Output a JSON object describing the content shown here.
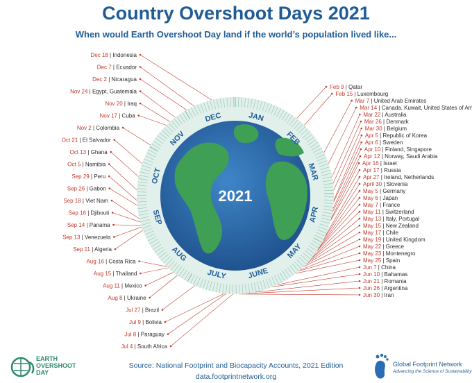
{
  "header": {
    "title": "Country Overshoot Days 2021",
    "subtitle": "When would Earth Overshoot Day land if the world’s population lived like..."
  },
  "center_year": "2021",
  "months": [
    "JAN",
    "FEB",
    "MAR",
    "APR",
    "MAY",
    "JUNE",
    "JULY",
    "AUG",
    "SEP",
    "OCT",
    "NOV",
    "DEC"
  ],
  "countries": [
    {
      "date": "Feb 9",
      "country": "Qatar"
    },
    {
      "date": "Feb 15",
      "country": "Luxembourg"
    },
    {
      "date": "Mar 7",
      "country": "United Arab Emirates"
    },
    {
      "date": "Mar 14",
      "country": "Canada, Kuwait, United States of America"
    },
    {
      "date": "Mar 22",
      "country": "Australia"
    },
    {
      "date": "Mar 26",
      "country": "Denmark"
    },
    {
      "date": "Mar 30",
      "country": "Belgium"
    },
    {
      "date": "Apr 5",
      "country": "Republic of Korea"
    },
    {
      "date": "Apr 6",
      "country": "Sweden"
    },
    {
      "date": "Apr 10",
      "country": "Finland, Singapore"
    },
    {
      "date": "Apr 12",
      "country": "Norway, Saudi Arabia"
    },
    {
      "date": "Apr 16",
      "country": "Israel"
    },
    {
      "date": "Apr 17",
      "country": "Russia"
    },
    {
      "date": "Apr 27",
      "country": "Ireland, Netherlands"
    },
    {
      "date": "April 30",
      "country": "Slovenia"
    },
    {
      "date": "May 5",
      "country": "Germany"
    },
    {
      "date": "May 6",
      "country": "Japan"
    },
    {
      "date": "May 7",
      "country": "France"
    },
    {
      "date": "May 11",
      "country": "Switzerland"
    },
    {
      "date": "May 13",
      "country": "Italy, Portugal"
    },
    {
      "date": "May 15",
      "country": "New Zealand"
    },
    {
      "date": "May 17",
      "country": "Chile"
    },
    {
      "date": "May 19",
      "country": "United Kingdom"
    },
    {
      "date": "May 22",
      "country": "Greece"
    },
    {
      "date": "May 23",
      "country": "Montenegro"
    },
    {
      "date": "May 25",
      "country": "Spain"
    },
    {
      "date": "Jun 7",
      "country": "China"
    },
    {
      "date": "Jun 10",
      "country": "Bahamas"
    },
    {
      "date": "Jun 21",
      "country": "Romania"
    },
    {
      "date": "Jun 26",
      "country": "Argentina"
    },
    {
      "date": "Jun 30",
      "country": "Iran"
    },
    {
      "date": "Jul 4",
      "country": "South Africa"
    },
    {
      "date": "Jul 8",
      "country": "Paraguay"
    },
    {
      "date": "Jul 9",
      "country": "Bolivia"
    },
    {
      "date": "Jul 27",
      "country": "Brazil"
    },
    {
      "date": "Aug 8",
      "country": "Ukraine"
    },
    {
      "date": "Aug 11",
      "country": "Mexico"
    },
    {
      "date": "Aug 15",
      "country": "Thailand"
    },
    {
      "date": "Aug 16",
      "country": "Costa Rica"
    },
    {
      "date": "Sep 11",
      "country": "Algeria"
    },
    {
      "date": "Sep 13",
      "country": "Venezuela"
    },
    {
      "date": "Sep 14",
      "country": "Panama"
    },
    {
      "date": "Sep 16",
      "country": "Djibouti"
    },
    {
      "date": "Sep 18",
      "country": "Viet Nam"
    },
    {
      "date": "Sep 26",
      "country": "Gabon"
    },
    {
      "date": "Sep 29",
      "country": "Peru"
    },
    {
      "date": "Oct 5",
      "country": "Namibia"
    },
    {
      "date": "Oct 13",
      "country": "Ghana"
    },
    {
      "date": "Oct 21",
      "country": "El Salvador"
    },
    {
      "date": "Nov 2",
      "country": "Colombia"
    },
    {
      "date": "Nov 17",
      "country": "Cuba"
    },
    {
      "date": "Nov 20",
      "country": "Iraq"
    },
    {
      "date": "Nov 24",
      "country": "Egypt, Guatemala"
    },
    {
      "date": "Dec 2",
      "country": "Nicaragua"
    },
    {
      "date": "Dec 7",
      "country": "Ecuador"
    },
    {
      "date": "Dec 18",
      "country": "Indonesia"
    }
  ],
  "footer": {
    "source": "Source: National Footprint and Biocapacity Accounts, 2021 Edition",
    "url": "data.footprintnetwork.org",
    "left_logo_lines": [
      "EARTH",
      "OVERSHOOT",
      "DAY"
    ],
    "right_logo_name": "Global Footprint Network",
    "right_logo_tagline": "Advancing the Science of Sustainability"
  },
  "colors": {
    "title": "#1f5c96",
    "date": "#c0392b",
    "ocean": "#2a6cb5",
    "land": "#3fa055",
    "ring": "#cfe6df"
  }
}
